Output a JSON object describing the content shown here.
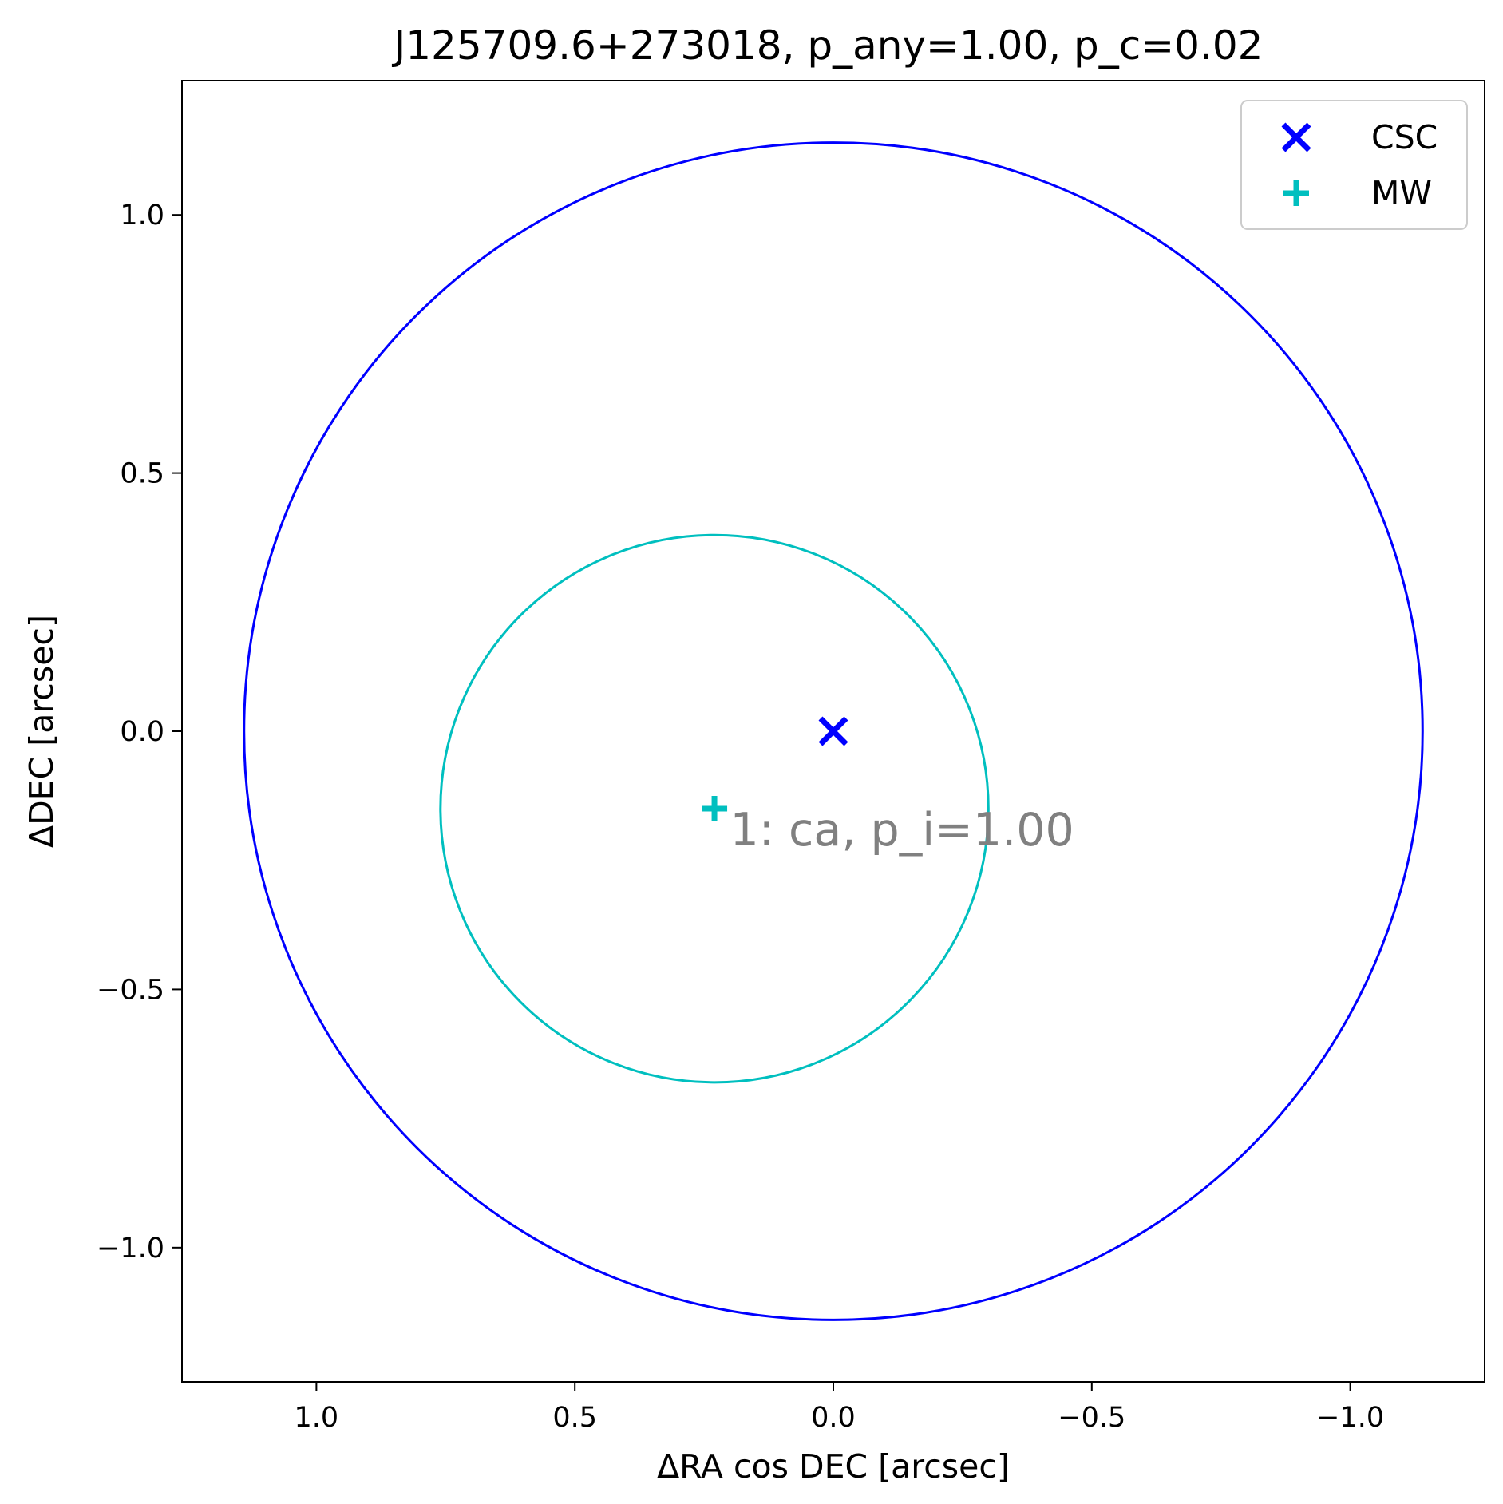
{
  "chart_data": {
    "type": "scatter",
    "title": "J125709.6+273018, p_any=1.00, p_c=0.02",
    "xlabel": "ΔRA cos DEC [arcsec]",
    "ylabel": "ΔDEC [arcsec]",
    "xlim": [
      1.26,
      -1.26
    ],
    "ylim": [
      -1.26,
      1.26
    ],
    "x_inverted": true,
    "x_ticks": [
      1.0,
      0.5,
      0.0,
      -0.5,
      -1.0
    ],
    "x_tick_labels": [
      "1.0",
      "0.5",
      "0.0",
      "−0.5",
      "−1.0"
    ],
    "y_ticks": [
      1.0,
      0.5,
      0.0,
      -0.5,
      -1.0
    ],
    "y_tick_labels": [
      "1.0",
      "0.5",
      "0.0",
      "−0.5",
      "−1.0"
    ],
    "grid": false,
    "legend_position": "top-right",
    "series": [
      {
        "name": "CSC",
        "marker": "x",
        "color": "#0000ff",
        "points": [
          {
            "x": 0.0,
            "y": 0.0
          }
        ]
      },
      {
        "name": "MW",
        "marker": "+",
        "color": "#00bfbf",
        "points": [
          {
            "x": 0.23,
            "y": -0.15
          }
        ]
      }
    ],
    "circles": [
      {
        "center_x": 0.0,
        "center_y": 0.0,
        "radius": 1.14,
        "color": "#0000ff"
      },
      {
        "center_x": 0.23,
        "center_y": -0.15,
        "radius": 0.53,
        "color": "#00bfbf"
      }
    ],
    "annotations": [
      {
        "text": "1: ca, p_i=1.00",
        "x": 0.2,
        "y": -0.19,
        "color": "#808080"
      }
    ]
  }
}
